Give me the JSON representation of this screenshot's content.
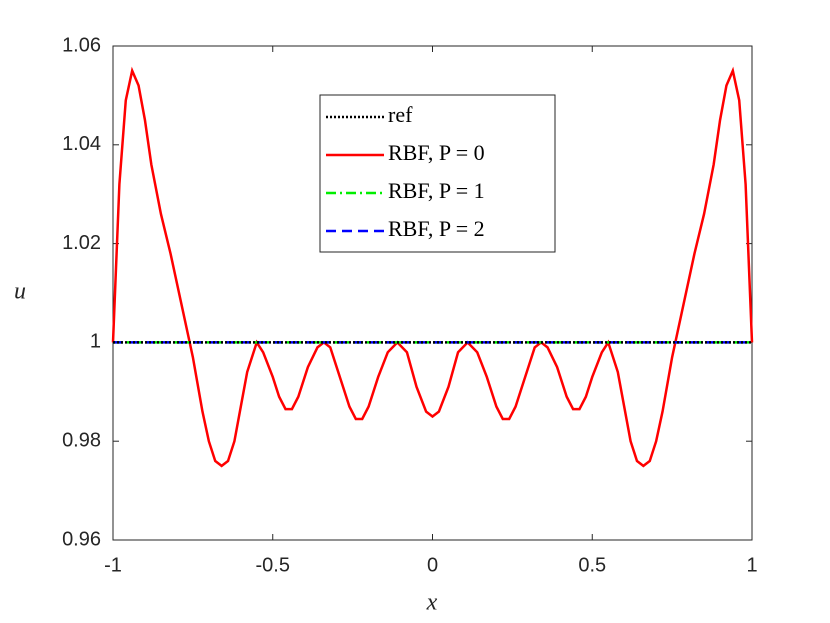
{
  "chart_data": {
    "type": "line",
    "xlabel": "x",
    "ylabel": "u",
    "xlim": [
      -1,
      1
    ],
    "xticks": [
      -1,
      -0.5,
      0,
      0.5,
      1
    ],
    "ylim": [
      0.96,
      1.06
    ],
    "yticks": [
      0.96,
      0.98,
      1,
      1.02,
      1.04,
      1.06
    ],
    "legend": "top-center",
    "series": [
      {
        "name": "ref",
        "color": "#000000",
        "style": "dotted",
        "x": [
          -1,
          1
        ],
        "values": [
          1,
          1
        ]
      },
      {
        "name": "RBF, P = 0",
        "color": "#ff0000",
        "style": "solid",
        "x": [
          -1,
          -0.98,
          -0.96,
          -0.94,
          -0.92,
          -0.9,
          -0.88,
          -0.85,
          -0.82,
          -0.78,
          -0.75,
          -0.72,
          -0.7,
          -0.68,
          -0.66,
          -0.64,
          -0.62,
          -0.6,
          -0.58,
          -0.56,
          -0.55,
          -0.53,
          -0.5,
          -0.48,
          -0.46,
          -0.44,
          -0.42,
          -0.39,
          -0.36,
          -0.34,
          -0.32,
          -0.29,
          -0.26,
          -0.24,
          -0.22,
          -0.2,
          -0.17,
          -0.14,
          -0.11,
          -0.08,
          -0.05,
          -0.02,
          0,
          0.02,
          0.05,
          0.08,
          0.11,
          0.14,
          0.17,
          0.2,
          0.22,
          0.24,
          0.26,
          0.29,
          0.32,
          0.34,
          0.36,
          0.39,
          0.42,
          0.44,
          0.46,
          0.48,
          0.5,
          0.53,
          0.55,
          0.56,
          0.58,
          0.6,
          0.62,
          0.64,
          0.66,
          0.68,
          0.7,
          0.72,
          0.75,
          0.78,
          0.82,
          0.85,
          0.88,
          0.9,
          0.92,
          0.94,
          0.96,
          0.98,
          1
        ],
        "values": [
          1,
          1.032,
          1.049,
          1.055,
          1.052,
          1.045,
          1.036,
          1.026,
          1.018,
          1.006,
          0.997,
          0.986,
          0.98,
          0.976,
          0.975,
          0.976,
          0.98,
          0.987,
          0.994,
          0.998,
          1,
          0.998,
          0.993,
          0.989,
          0.9865,
          0.9865,
          0.989,
          0.995,
          0.999,
          1,
          0.999,
          0.993,
          0.987,
          0.9845,
          0.9845,
          0.987,
          0.993,
          0.998,
          1,
          0.998,
          0.991,
          0.986,
          0.985,
          0.986,
          0.991,
          0.998,
          1,
          0.998,
          0.993,
          0.987,
          0.9845,
          0.9845,
          0.987,
          0.993,
          0.999,
          1,
          0.999,
          0.995,
          0.989,
          0.9865,
          0.9865,
          0.989,
          0.993,
          0.998,
          1,
          0.998,
          0.994,
          0.987,
          0.98,
          0.976,
          0.975,
          0.976,
          0.98,
          0.986,
          0.997,
          1.006,
          1.018,
          1.026,
          1.036,
          1.045,
          1.052,
          1.055,
          1.049,
          1.032,
          1
        ]
      },
      {
        "name": "RBF, P = 1",
        "color": "#00ee00",
        "style": "dashdot",
        "x": [
          -1,
          1
        ],
        "values": [
          1,
          1
        ]
      },
      {
        "name": "RBF, P = 2",
        "color": "#0000ff",
        "style": "dashed",
        "x": [
          -1,
          1
        ],
        "values": [
          1,
          1
        ]
      }
    ]
  }
}
